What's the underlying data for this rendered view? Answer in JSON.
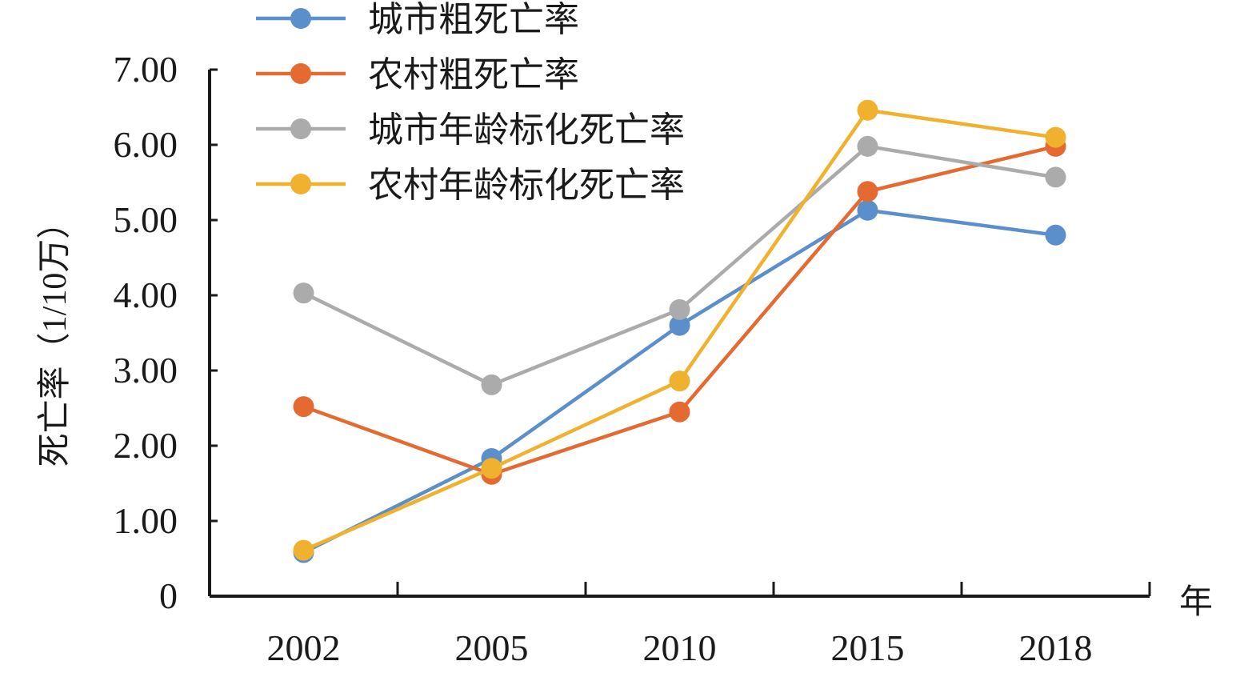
{
  "chart_data": {
    "type": "line",
    "title": "",
    "xlabel": "年",
    "ylabel": "死亡率（1/10万）",
    "categories": [
      "2002",
      "2005",
      "2010",
      "2015",
      "2018"
    ],
    "ylim": [
      0,
      7
    ],
    "yticks": [
      "0",
      "1.00",
      "2.00",
      "3.00",
      "4.00",
      "5.00",
      "6.00",
      "7.00"
    ],
    "grid": false,
    "legend_position": "top-left",
    "series": [
      {
        "name": "城市粗死亡率",
        "color": "#5B8FCB",
        "values": [
          0.58,
          1.83,
          3.6,
          5.13,
          4.8
        ]
      },
      {
        "name": "农村粗死亡率",
        "color": "#E46A32",
        "values": [
          2.52,
          1.62,
          2.45,
          5.38,
          5.98
        ]
      },
      {
        "name": "城市年龄标化死亡率",
        "color": "#ABABAB",
        "values": [
          4.03,
          2.81,
          3.81,
          5.98,
          5.57
        ]
      },
      {
        "name": "农村年龄标化死亡率",
        "color": "#F0B12E",
        "values": [
          0.61,
          1.7,
          2.86,
          6.46,
          6.1
        ]
      }
    ]
  }
}
